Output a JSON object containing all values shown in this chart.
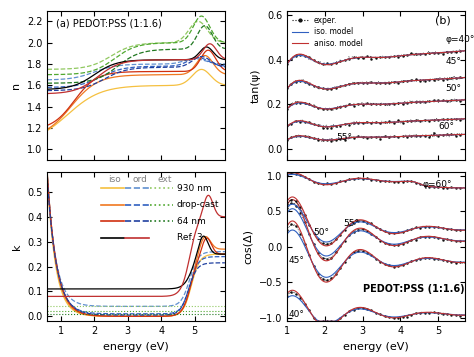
{
  "title_a": "(a) PEDOT:PSS (1:1.6)",
  "title_b": "(b)",
  "xlabel": "energy (eV)",
  "ylabel_n": "n",
  "ylabel_k": "k",
  "ylabel_tan": "tan(ψ)",
  "ylabel_cos": "cos(Δ)",
  "legend_iso": "iso",
  "legend_ord": "ord",
  "legend_ext": "ext",
  "legend_items": [
    "930 nm",
    "drop-cast",
    "64 nm",
    "Ref. 3"
  ],
  "colors_iso": [
    "#f5c040",
    "#f07820",
    "#d03010",
    "#101010"
  ],
  "colors_ord": [
    "#6090d0",
    "#3060c0",
    "#2040a0",
    "#101010"
  ],
  "colors_ext": [
    "#90c860",
    "#50a830",
    "#207820",
    "#c03030"
  ],
  "phi_labels_tan": [
    "φ=40°",
    "45°",
    "50°",
    "55°",
    "60°"
  ],
  "phi_labels_cos": [
    "40°",
    "45°",
    "50°",
    "55°",
    "φ=60°"
  ],
  "annotation_cos": "PEDOT:PSS (1:1.6)",
  "exper_label": "exper.",
  "iso_model_label": "iso. model",
  "aniso_model_label": "aniso. model",
  "color_exper": "#111111",
  "color_iso_model": "#3060c0",
  "color_aniso_model": "#c03030",
  "ylim_n": [
    0.9,
    2.3
  ],
  "ylim_k": [
    -0.02,
    0.58
  ],
  "ylim_tan": [
    -0.05,
    0.62
  ],
  "ylim_cos": [
    -1.05,
    1.05
  ],
  "xlim_left": [
    0.6,
    5.9
  ],
  "xlim_right": [
    1.0,
    5.7
  ]
}
